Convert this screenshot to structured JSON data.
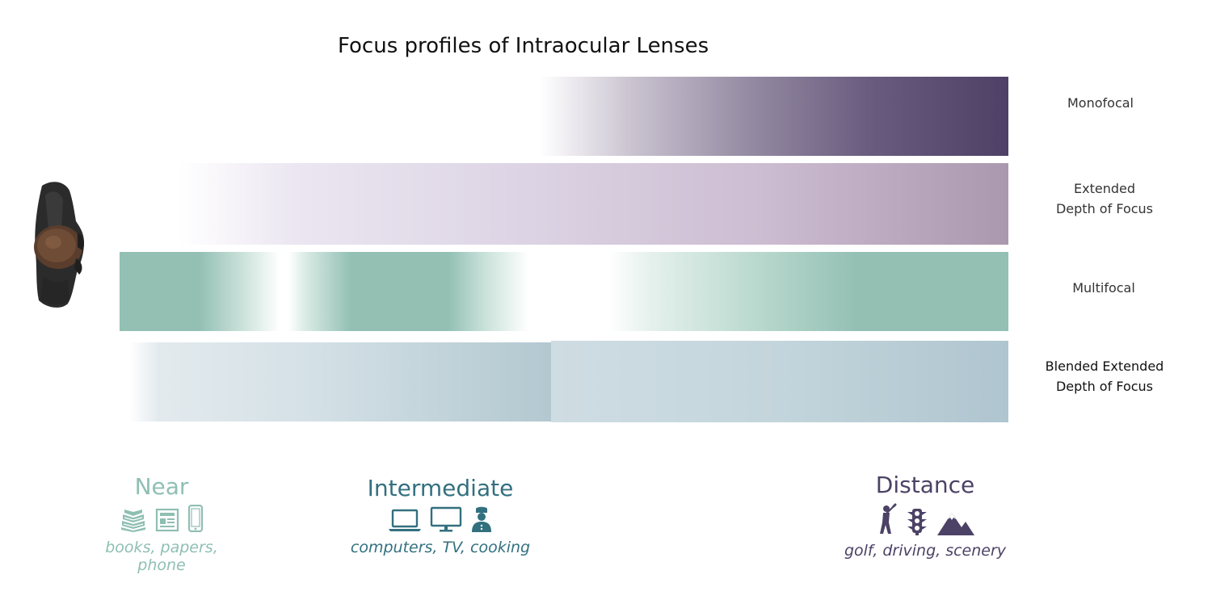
{
  "title": "Focus profiles of Intraocular Lenses",
  "lenses": [
    {
      "id": "monofocal",
      "label_lines": [
        "Monofocal"
      ],
      "color": "#4e4066"
    },
    {
      "id": "edof",
      "label_lines": [
        "Extended",
        "Depth of Focus"
      ],
      "color": "#aa98ae"
    },
    {
      "id": "multifocal",
      "label_lines": [
        "Multifocal"
      ],
      "color": "#94c0b4"
    },
    {
      "id": "bedof",
      "label_lines": [
        "Blended Extended",
        "Depth of Focus"
      ],
      "color": "#afc5cf"
    }
  ],
  "zones": {
    "near": {
      "heading": "Near",
      "subtitle": "books, papers, phone",
      "color": "#8fbfb3",
      "icons": [
        "books-icon",
        "newspaper-icon",
        "phone-icon"
      ]
    },
    "intermediate": {
      "heading": "Intermediate",
      "subtitle": "computers, TV, cooking",
      "color": "#33707f",
      "icons": [
        "laptop-icon",
        "monitor-icon",
        "chef-icon"
      ]
    },
    "distance": {
      "heading": "Distance",
      "subtitle": "golf, driving, scenery",
      "color": "#4c4266",
      "icons": [
        "golfer-icon",
        "traffic-light-icon",
        "mountains-icon"
      ]
    }
  },
  "person": "person-topdown-icon"
}
